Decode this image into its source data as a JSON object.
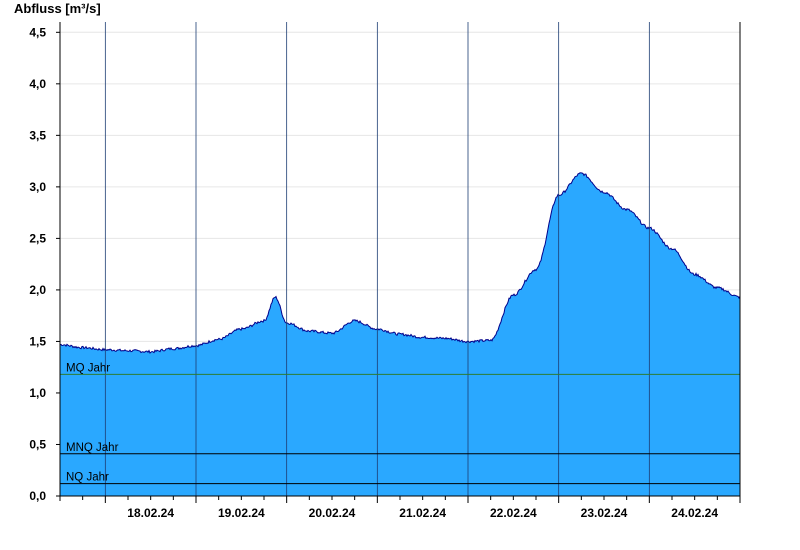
{
  "chart_data": {
    "type": "area",
    "ylabel": "Abfluss [m³/s]",
    "ylim": [
      0,
      4.6
    ],
    "yticks": [
      0,
      0.5,
      1.0,
      1.5,
      2.0,
      2.5,
      3.0,
      3.5,
      4.0,
      4.5
    ],
    "ytick_labels": [
      "0,0",
      "0,5",
      "1,0",
      "1,5",
      "2,0",
      "2,5",
      "3,0",
      "3,5",
      "4,0",
      "4,5"
    ],
    "xrange_days": [
      "17.02.24 12:00",
      "24.02.24 24:00"
    ],
    "xtick_labels": [
      "18.02.24",
      "19.02.24",
      "20.02.24",
      "21.02.24",
      "22.02.24",
      "23.02.24",
      "24.02.24"
    ],
    "grid": true,
    "fill_color": "#2aa8ff",
    "line_color": "#00008b",
    "series": [
      {
        "values_x": [
          "17.02.24 12:00",
          "17.02.24 18:00",
          "18.02.24 00:00",
          "18.02.24 06:00",
          "18.02.24 12:00",
          "18.02.24 18:00",
          "19.02.24 00:00",
          "19.02.24 06:00",
          "19.02.24 12:00",
          "19.02.24 18:00",
          "19.02.24 21:00",
          "20.02.24 00:00",
          "20.02.24 06:00",
          "20.02.24 12:00",
          "20.02.24 18:00",
          "21.02.24 00:00",
          "21.02.24 06:00",
          "21.02.24 12:00",
          "21.02.24 18:00",
          "22.02.24 00:00",
          "22.02.24 06:00",
          "22.02.24 12:00",
          "22.02.24 18:00",
          "23.02.24 00:00",
          "23.02.24 06:00",
          "23.02.24 12:00",
          "23.02.24 18:00",
          "24.02.24 00:00",
          "24.02.24 06:00",
          "24.02.24 12:00",
          "24.02.24 18:00",
          "24.02.24 24:00"
        ],
        "values_y": [
          1.47,
          1.44,
          1.42,
          1.41,
          1.4,
          1.43,
          1.46,
          1.52,
          1.62,
          1.7,
          1.93,
          1.68,
          1.6,
          1.58,
          1.7,
          1.62,
          1.57,
          1.54,
          1.53,
          1.5,
          1.51,
          1.95,
          2.2,
          2.92,
          3.13,
          2.95,
          2.78,
          2.6,
          2.4,
          2.15,
          2.02,
          1.93
        ]
      }
    ],
    "reference_lines": [
      {
        "label": "MQ Jahr",
        "value": 1.18,
        "color": "#2e7d32"
      },
      {
        "label": "MNQ Jahr",
        "value": 0.41,
        "color": "#000000"
      },
      {
        "label": "NQ Jahr",
        "value": 0.12,
        "color": "#000000"
      }
    ]
  }
}
